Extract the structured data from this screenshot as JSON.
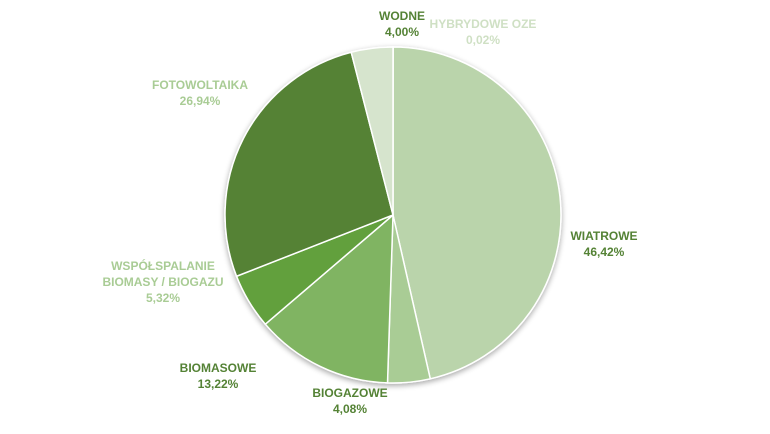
{
  "chart_data": {
    "type": "pie",
    "title": "",
    "legend": "none",
    "slices": [
      {
        "label": "HYBRYDOWE OZE",
        "value_text": "0,02%",
        "value": 0.02,
        "color": "#cfe0c4",
        "label_color": "#cfe0c4"
      },
      {
        "label": "WIATROWE",
        "value_text": "46,42%",
        "value": 46.42,
        "color": "#bad4ab",
        "label_color": "#548235"
      },
      {
        "label": "BIOGAZOWE",
        "value_text": "4,08%",
        "value": 4.08,
        "color": "#a9cc95",
        "label_color": "#548235"
      },
      {
        "label": "BIOMASOWE",
        "value_text": "13,22%",
        "value": 13.22,
        "color": "#80b462",
        "label_color": "#548235"
      },
      {
        "label": "WSPÓŁSPALANIE BIOMASY / BIOGAZU",
        "label_lines": [
          "WSPÓŁSPALANIE",
          "BIOMASY / BIOGAZU"
        ],
        "value_text": "5,32%",
        "value": 5.32,
        "color": "#62a03e",
        "label_color": "#a9cc95"
      },
      {
        "label": "FOTOWOLTAIKA",
        "value_text": "26,94%",
        "value": 26.94,
        "color": "#548235",
        "label_color": "#a9cc95"
      },
      {
        "label": "WODNE",
        "value_text": "4,00%",
        "value": 4.0,
        "color": "#d6e4cd",
        "label_color": "#548235"
      }
    ]
  }
}
